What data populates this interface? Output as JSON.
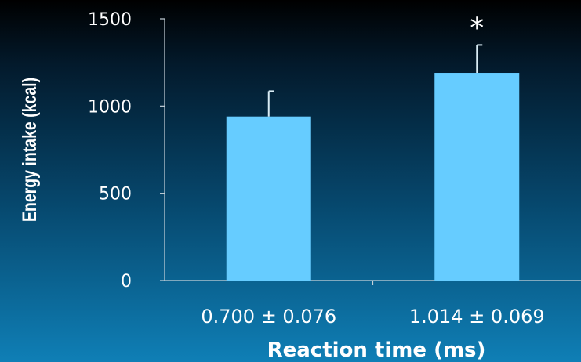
{
  "chart_data": {
    "type": "bar",
    "title": "",
    "xlabel": "Reaction time (ms)",
    "ylabel": "Energy intake (kcal)",
    "ylim": [
      0,
      1500
    ],
    "yticks": [
      0,
      500,
      1000,
      1500
    ],
    "yticklabels": [
      "0",
      "500",
      "1000",
      "1500"
    ],
    "categories": [
      "0.700 ± 0.076",
      "1.014 ± 0.069"
    ],
    "values": [
      940,
      1190
    ],
    "error_plus": [
      145,
      160
    ],
    "significance": [
      "",
      "*"
    ],
    "grid": false,
    "colors": {
      "bar": "#66ccff",
      "text": "#ffffff"
    }
  }
}
